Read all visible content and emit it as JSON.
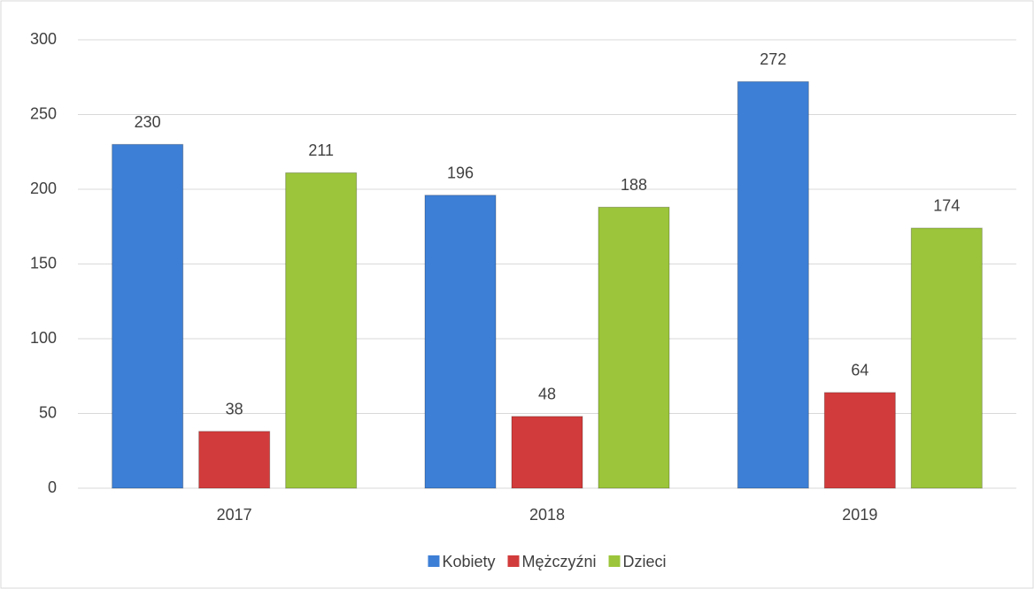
{
  "chart_data": {
    "type": "bar",
    "categories": [
      "2017",
      "2018",
      "2019"
    ],
    "series": [
      {
        "name": "Kobiety",
        "color": "#3d7fd6",
        "values": [
          230,
          196,
          272
        ]
      },
      {
        "name": "Mężczyźni",
        "color": "#d23b3b",
        "values": [
          38,
          48,
          64
        ]
      },
      {
        "name": "Dzieci",
        "color": "#9cc53b",
        "values": [
          211,
          188,
          174
        ]
      }
    ],
    "ylim": [
      0,
      300
    ],
    "yticks": [
      0,
      50,
      100,
      150,
      200,
      250,
      300
    ],
    "grid": true,
    "legend": "bottom"
  }
}
